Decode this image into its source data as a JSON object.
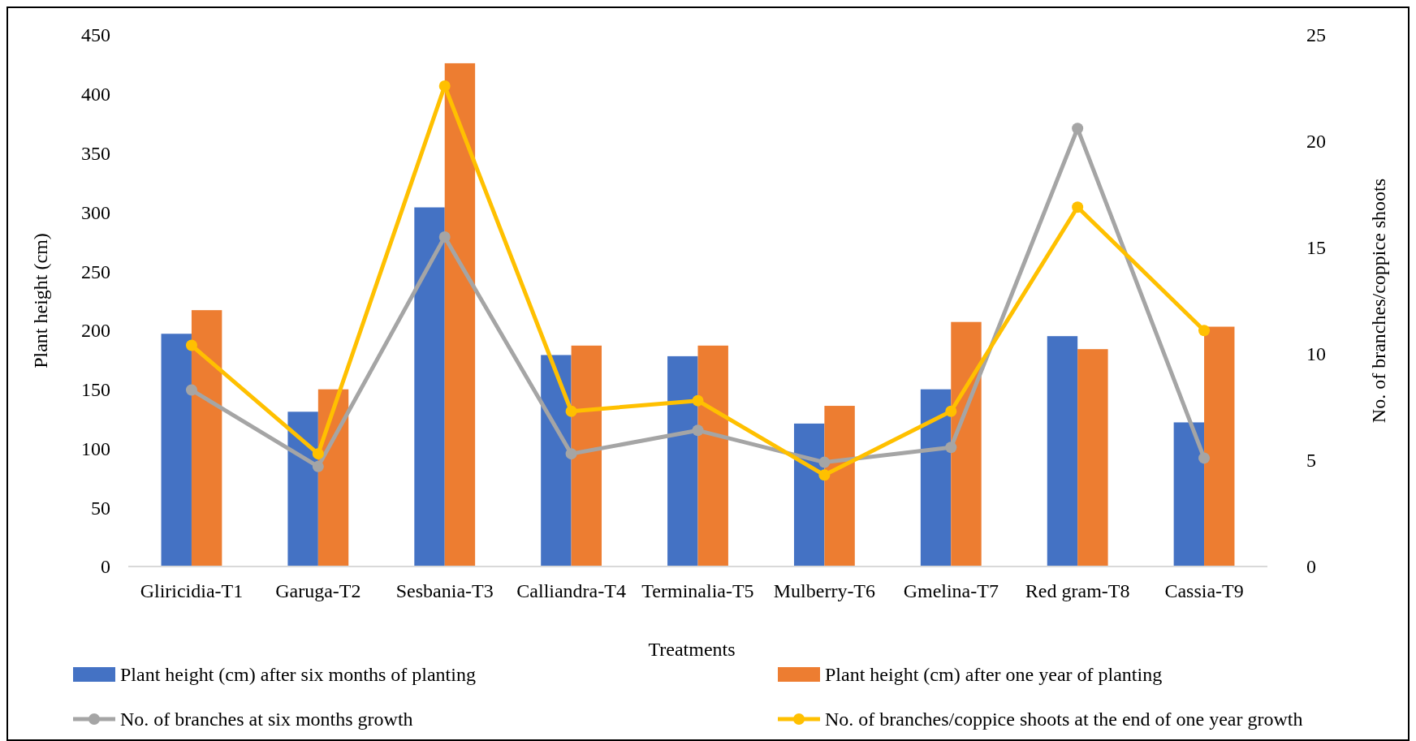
{
  "chart_data": {
    "type": "bar",
    "xlabel": "Treatments",
    "ylabel": "Plant height (cm)",
    "y2label": "No. of branches/coppice shoots",
    "categories": [
      "Gliricidia-T1",
      "Garuga-T2",
      "Sesbania-T3",
      "Calliandra-T4",
      "Terminalia-T5",
      "Mulberry-T6",
      "Gmelina-T7",
      "Red gram-T8",
      "Cassia-T9"
    ],
    "series": [
      {
        "name": "Plant height (cm) after six months of planting",
        "color": "#4472c4",
        "values": [
          197,
          131,
          304,
          179,
          178,
          121,
          150,
          195,
          122
        ]
      },
      {
        "name": "Plant height (cm) after one year of planting",
        "color": "#ed7d31",
        "values": [
          217,
          150,
          426,
          187,
          187,
          136,
          207,
          184,
          203
        ]
      },
      {
        "name": "No. of branches at six months growth",
        "type": "line",
        "axis": "y2",
        "color": "#a5a5a5",
        "values": [
          8.3,
          4.7,
          15.5,
          5.3,
          6.4,
          4.9,
          5.6,
          20.6,
          5.1
        ]
      },
      {
        "name": "No. of branches/coppice shoots at the end of one year growth",
        "type": "line",
        "axis": "y2",
        "color": "#ffc000",
        "values": [
          10.4,
          5.3,
          22.6,
          7.3,
          7.8,
          4.3,
          7.3,
          16.9,
          11.1
        ]
      }
    ],
    "ylim": [
      0,
      450
    ],
    "yticks": [
      0,
      50,
      100,
      150,
      200,
      250,
      300,
      350,
      400,
      450
    ],
    "y2lim": [
      0,
      25
    ],
    "y2ticks": [
      0,
      5,
      10,
      15,
      20,
      25
    ],
    "marker": "circle",
    "legend": "bottom",
    "grid": false
  }
}
